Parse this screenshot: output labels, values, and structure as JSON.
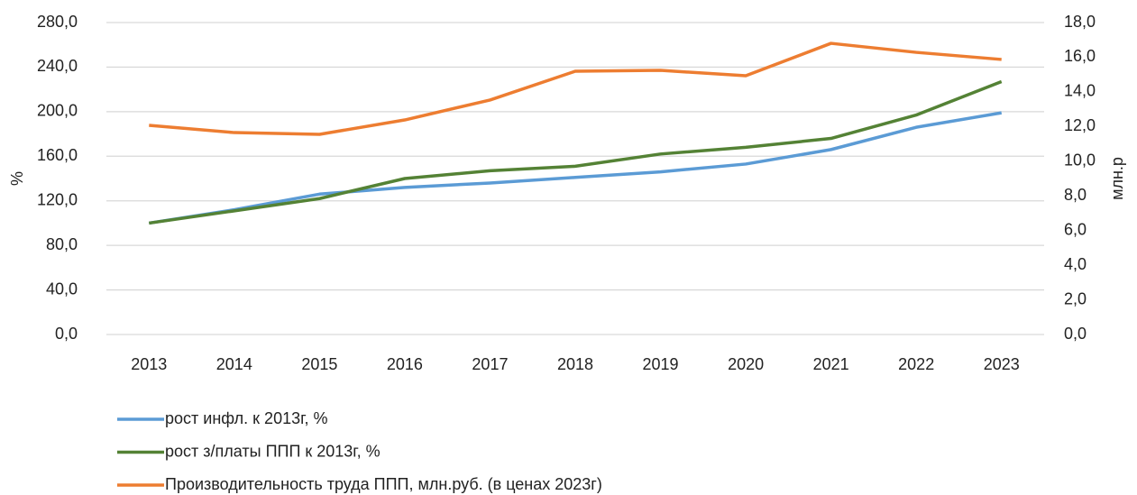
{
  "chart_data": {
    "type": "line",
    "categories": [
      "2013",
      "2014",
      "2015",
      "2016",
      "2017",
      "2018",
      "2019",
      "2020",
      "2021",
      "2022",
      "2023"
    ],
    "ylabel": "%",
    "y2label": "млн.р",
    "ylim": [
      0,
      280
    ],
    "yticks": [
      {
        "value": 0,
        "label": "0,0"
      },
      {
        "value": 40,
        "label": "40,0"
      },
      {
        "value": 80,
        "label": "80,0"
      },
      {
        "value": 120,
        "label": "120,0"
      },
      {
        "value": 160,
        "label": "160,0"
      },
      {
        "value": 200,
        "label": "200,0"
      },
      {
        "value": 240,
        "label": "240,0"
      },
      {
        "value": 280,
        "label": "280,0"
      }
    ],
    "y2lim": [
      0,
      18
    ],
    "y2ticks": [
      {
        "value": 0,
        "label": "0,0"
      },
      {
        "value": 2,
        "label": "2,0"
      },
      {
        "value": 4,
        "label": "4,0"
      },
      {
        "value": 6,
        "label": "6,0"
      },
      {
        "value": 8,
        "label": "8,0"
      },
      {
        "value": 10,
        "label": "10,0"
      },
      {
        "value": 12,
        "label": "12,0"
      },
      {
        "value": 14,
        "label": "14,0"
      },
      {
        "value": 16,
        "label": "16,0"
      },
      {
        "value": 18,
        "label": "18,0"
      }
    ],
    "grid": true,
    "legend": "bottom",
    "series": [
      {
        "name": "рост инфл. к 2013г, %",
        "color": "#5b9bd5",
        "values": [
          100,
          112,
          126,
          132,
          136,
          141,
          146,
          153,
          166,
          186,
          199
        ]
      },
      {
        "name": "рост  з/платы ППП к 2013г, %",
        "color": "#548235",
        "values": [
          100,
          111,
          122,
          140,
          147,
          151,
          162,
          168,
          176,
          197,
          227
        ]
      },
      {
        "name": "Производительность труда ППП, млн.руб. (в ценах 2023г)",
        "color": "#ed7d31",
        "axis": "y2",
        "values": [
          12.07,
          11.65,
          11.55,
          12.38,
          13.53,
          15.19,
          15.24,
          14.93,
          16.8,
          16.28,
          15.87
        ]
      }
    ]
  }
}
